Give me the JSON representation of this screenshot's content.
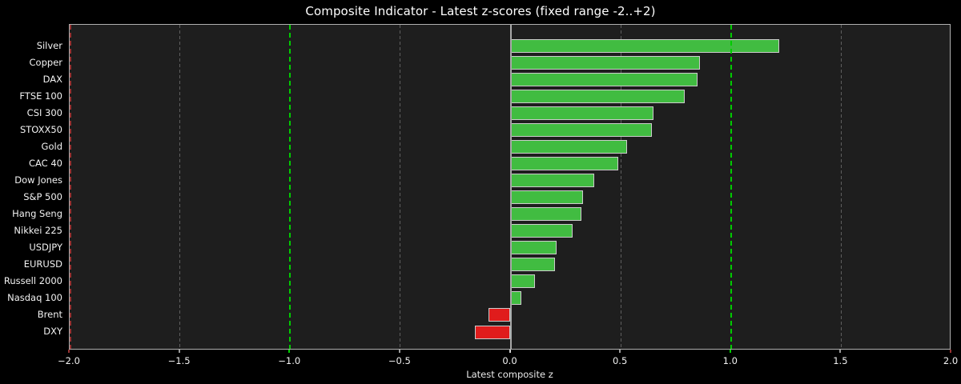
{
  "chart_data": {
    "type": "bar",
    "orientation": "horizontal",
    "title": "Composite Indicator - Latest z-scores (fixed range -2..+2)",
    "xlabel": "Latest composite z",
    "xlim": [
      -2,
      2
    ],
    "grid": true,
    "categories": [
      "Silver",
      "Copper",
      "DAX",
      "FTSE 100",
      "CSI 300",
      "STOXX50",
      "Gold",
      "CAC 40",
      "Dow Jones",
      "S&P 500",
      "Hang Seng",
      "Nikkei 225",
      "USDJPY",
      "EURUSD",
      "Russell 2000",
      "Nasdaq 100",
      "Brent",
      "DXY"
    ],
    "values": [
      1.22,
      0.86,
      0.85,
      0.79,
      0.65,
      0.64,
      0.53,
      0.49,
      0.38,
      0.33,
      0.32,
      0.28,
      0.21,
      0.2,
      0.11,
      0.05,
      -0.1,
      -0.16
    ],
    "x_tick_values": [
      -2.0,
      -1.5,
      -1.0,
      -0.5,
      0.0,
      0.5,
      1.0,
      1.5,
      2.0
    ],
    "x_tick_labels": [
      "−2.0",
      "−1.5",
      "−1.0",
      "−0.5",
      "0.0",
      "0.5",
      "1.0",
      "1.5",
      "2.0"
    ],
    "reference_lines": [
      {
        "x": -2.0,
        "color": "#993333",
        "style": "dashed",
        "width": 2,
        "above": true
      },
      {
        "x": -1.5,
        "color": "#5f5f5f",
        "style": "dashed",
        "width": 1,
        "above": false
      },
      {
        "x": -1.0,
        "color": "#00cc00",
        "style": "dashed",
        "width": 2,
        "above": true
      },
      {
        "x": -0.5,
        "color": "#5f5f5f",
        "style": "dashed",
        "width": 1,
        "above": false
      },
      {
        "x": 0.0,
        "color": "#a8a8a8",
        "style": "solid",
        "width": 2,
        "above": true
      },
      {
        "x": 0.5,
        "color": "#5f5f5f",
        "style": "dashed",
        "width": 1,
        "above": false
      },
      {
        "x": 1.0,
        "color": "#00cc00",
        "style": "dashed",
        "width": 2,
        "above": true
      },
      {
        "x": 1.5,
        "color": "#5f5f5f",
        "style": "dashed",
        "width": 1,
        "above": false
      },
      {
        "x": 2.0,
        "color": "#993333",
        "style": "dashed",
        "width": 2,
        "above": true
      }
    ],
    "colors": {
      "background": "#000000",
      "plot_background": "#1e1e1e",
      "bar_positive": "#41bc41",
      "bar_negative": "#e01c1c",
      "bar_edge": "#cccccc",
      "spine": "#b0b0b0",
      "tick_default": "#9a9a9a",
      "text": "#f2f2f2"
    }
  }
}
